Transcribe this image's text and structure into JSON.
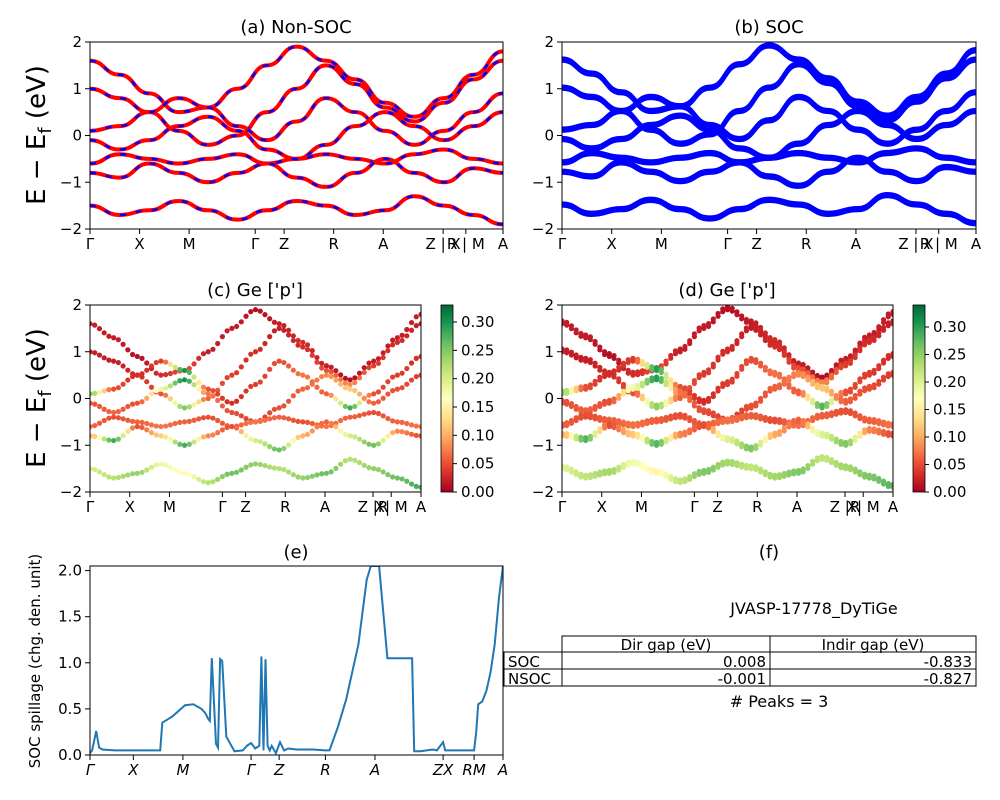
{
  "figure_label": "JVASP-17778_DyTiGe",
  "colorbar_ticks": [
    "0.00",
    "0.05",
    "0.10",
    "0.15",
    "0.20",
    "0.25",
    "0.30"
  ],
  "chart_data": [
    {
      "id": "a",
      "type": "line",
      "title": "(a) Non-SOC",
      "ylabel": "E − E_f (eV)",
      "ylim": [
        -2,
        2
      ],
      "yticks": [
        "−2",
        "−1",
        "0",
        "1",
        "2"
      ],
      "kpath": [
        "Γ",
        "X",
        "M",
        "Γ",
        "Z",
        "R",
        "A",
        "Z | X",
        "R | M",
        "A"
      ],
      "colors": [
        "#ff0000",
        "#0000ff"
      ],
      "series": [
        {
          "values": [
            1.6,
            1.3,
            0.9,
            0.5,
            0.6,
            1.0,
            1.5,
            1.9,
            1.6,
            1.2,
            0.7,
            0.4,
            0.8,
            1.3,
            1.8
          ]
        },
        {
          "values": [
            1.0,
            0.8,
            0.5,
            0.1,
            -0.2,
            0.0,
            0.5,
            1.0,
            1.5,
            1.1,
            0.6,
            0.3,
            0.7,
            1.2,
            1.6
          ]
        },
        {
          "values": [
            0.1,
            0.2,
            0.5,
            0.8,
            0.6,
            0.2,
            -0.1,
            0.3,
            0.8,
            0.5,
            0.1,
            -0.2,
            0.1,
            0.5,
            0.9
          ]
        },
        {
          "values": [
            -0.1,
            -0.3,
            -0.1,
            0.2,
            0.4,
            0.1,
            -0.3,
            -0.5,
            -0.2,
            0.2,
            0.5,
            0.2,
            -0.1,
            0.2,
            0.5
          ]
        },
        {
          "values": [
            -0.6,
            -0.4,
            -0.5,
            -0.6,
            -0.5,
            -0.4,
            -0.6,
            -0.5,
            -0.4,
            -0.5,
            -0.6,
            -0.4,
            -0.3,
            -0.5,
            -0.6
          ]
        },
        {
          "values": [
            -0.8,
            -0.9,
            -0.6,
            -0.8,
            -1.0,
            -0.8,
            -0.6,
            -0.9,
            -1.1,
            -0.8,
            -0.5,
            -0.8,
            -1.0,
            -0.7,
            -0.8
          ]
        },
        {
          "values": [
            -1.5,
            -1.7,
            -1.6,
            -1.4,
            -1.6,
            -1.8,
            -1.6,
            -1.4,
            -1.5,
            -1.7,
            -1.6,
            -1.3,
            -1.5,
            -1.7,
            -1.9
          ]
        }
      ]
    },
    {
      "id": "b",
      "type": "line",
      "title": "(b) SOC",
      "ylim": [
        -2,
        2
      ],
      "yticks": [
        "−2",
        "−1",
        "0",
        "1",
        "2"
      ],
      "kpath": [
        "Γ",
        "X",
        "M",
        "Γ",
        "Z",
        "R",
        "A",
        "Z | X",
        "R | M",
        "A"
      ],
      "colors": [
        "#0000ff"
      ],
      "series": [
        {
          "values": [
            1.6,
            1.3,
            0.9,
            0.5,
            0.6,
            1.0,
            1.5,
            1.9,
            1.6,
            1.2,
            0.7,
            0.4,
            0.8,
            1.3,
            1.8
          ]
        },
        {
          "values": [
            1.0,
            0.8,
            0.5,
            0.1,
            -0.2,
            0.0,
            0.5,
            1.0,
            1.5,
            1.1,
            0.6,
            0.3,
            0.7,
            1.2,
            1.6
          ]
        },
        {
          "values": [
            0.1,
            0.2,
            0.5,
            0.8,
            0.6,
            0.2,
            -0.1,
            0.3,
            0.8,
            0.5,
            0.1,
            -0.2,
            0.1,
            0.5,
            0.9
          ]
        },
        {
          "values": [
            -0.1,
            -0.3,
            -0.1,
            0.2,
            0.4,
            0.1,
            -0.3,
            -0.5,
            -0.2,
            0.2,
            0.5,
            0.2,
            -0.1,
            0.2,
            0.5
          ]
        },
        {
          "values": [
            -0.6,
            -0.4,
            -0.5,
            -0.6,
            -0.5,
            -0.4,
            -0.6,
            -0.5,
            -0.4,
            -0.5,
            -0.6,
            -0.4,
            -0.3,
            -0.5,
            -0.6
          ]
        },
        {
          "values": [
            -0.8,
            -0.9,
            -0.6,
            -0.8,
            -1.0,
            -0.8,
            -0.6,
            -0.9,
            -1.1,
            -0.8,
            -0.5,
            -0.8,
            -1.0,
            -0.7,
            -0.8
          ]
        },
        {
          "values": [
            -1.5,
            -1.7,
            -1.6,
            -1.4,
            -1.6,
            -1.8,
            -1.6,
            -1.4,
            -1.5,
            -1.7,
            -1.6,
            -1.3,
            -1.5,
            -1.7,
            -1.9
          ]
        }
      ]
    },
    {
      "id": "c",
      "type": "scatter",
      "title": "(c)  Ge ['p']",
      "ylabel": "E − E_f (eV)",
      "ylim": [
        -2,
        2
      ],
      "yticks": [
        "−2",
        "−1",
        "0",
        "1",
        "2"
      ],
      "kpath": [
        "Γ",
        "X",
        "M",
        "Γ",
        "Z",
        "R",
        "A",
        "Z |R",
        "X| M",
        "A"
      ],
      "colorbar_range": [
        0,
        0.33
      ],
      "series": [
        {
          "values": [
            1.6,
            1.3,
            0.9,
            0.5,
            0.6,
            1.0,
            1.5,
            1.9,
            1.6,
            1.2,
            0.7,
            0.4,
            0.8,
            1.3,
            1.8
          ],
          "weights": [
            0.02,
            0.02,
            0.01,
            0.03,
            0.05,
            0.02,
            0.02,
            0.01,
            0.02,
            0.03,
            0.02,
            0.01,
            0.02,
            0.02,
            0.02
          ]
        },
        {
          "values": [
            1.0,
            0.8,
            0.5,
            0.1,
            -0.2,
            0.0,
            0.5,
            1.0,
            1.5,
            1.1,
            0.6,
            0.3,
            0.7,
            1.2,
            1.6
          ],
          "weights": [
            0.02,
            0.02,
            0.03,
            0.05,
            0.25,
            0.06,
            0.04,
            0.03,
            0.02,
            0.03,
            0.05,
            0.08,
            0.04,
            0.03,
            0.02
          ]
        },
        {
          "values": [
            0.1,
            0.2,
            0.5,
            0.8,
            0.6,
            0.2,
            -0.1,
            0.3,
            0.8,
            0.5,
            0.1,
            -0.2,
            0.1,
            0.5,
            0.9
          ],
          "weights": [
            0.25,
            0.05,
            0.03,
            0.04,
            0.3,
            0.05,
            0.03,
            0.04,
            0.05,
            0.07,
            0.06,
            0.28,
            0.05,
            0.04,
            0.03
          ]
        },
        {
          "values": [
            -0.1,
            -0.3,
            -0.1,
            0.2,
            0.4,
            0.1,
            -0.3,
            -0.5,
            -0.2,
            0.2,
            0.5,
            0.2,
            -0.1,
            0.2,
            0.5
          ],
          "weights": [
            0.05,
            0.06,
            0.05,
            0.18,
            0.3,
            0.07,
            0.05,
            0.04,
            0.05,
            0.06,
            0.08,
            0.12,
            0.06,
            0.05,
            0.04
          ]
        },
        {
          "values": [
            -0.6,
            -0.4,
            -0.5,
            -0.6,
            -0.5,
            -0.4,
            -0.6,
            -0.5,
            -0.4,
            -0.5,
            -0.6,
            -0.4,
            -0.3,
            -0.5,
            -0.6
          ],
          "weights": [
            0.06,
            0.05,
            0.06,
            0.07,
            0.06,
            0.05,
            0.06,
            0.07,
            0.06,
            0.05,
            0.07,
            0.06,
            0.05,
            0.06,
            0.07
          ]
        },
        {
          "values": [
            -0.8,
            -0.9,
            -0.6,
            -0.8,
            -1.0,
            -0.8,
            -0.6,
            -0.9,
            -1.1,
            -0.8,
            -0.5,
            -0.8,
            -1.0,
            -0.7,
            -0.8
          ],
          "weights": [
            0.1,
            0.28,
            0.05,
            0.12,
            0.28,
            0.08,
            0.05,
            0.2,
            0.26,
            0.1,
            0.06,
            0.2,
            0.26,
            0.08,
            0.05
          ]
        },
        {
          "values": [
            -1.5,
            -1.7,
            -1.6,
            -1.4,
            -1.6,
            -1.8,
            -1.6,
            -1.4,
            -1.5,
            -1.7,
            -1.6,
            -1.3,
            -1.5,
            -1.7,
            -1.9
          ],
          "weights": [
            0.2,
            0.22,
            0.24,
            0.18,
            0.16,
            0.22,
            0.26,
            0.24,
            0.22,
            0.24,
            0.26,
            0.22,
            0.24,
            0.26,
            0.28
          ]
        }
      ]
    },
    {
      "id": "d",
      "type": "scatter",
      "title": "(d) Ge ['p']",
      "ylim": [
        -2,
        2
      ],
      "yticks": [
        "−2",
        "−1",
        "0",
        "1",
        "2"
      ],
      "kpath": [
        "Γ",
        "X",
        "M",
        "Γ",
        "Z",
        "R",
        "A",
        "Z |R",
        "X| M",
        "A"
      ],
      "colorbar_range": [
        0,
        0.34
      ],
      "series": [
        {
          "values": [
            1.6,
            1.3,
            0.9,
            0.5,
            0.6,
            1.0,
            1.5,
            1.9,
            1.6,
            1.2,
            0.7,
            0.4,
            0.8,
            1.3,
            1.8
          ],
          "weights": [
            0.02,
            0.02,
            0.01,
            0.03,
            0.05,
            0.02,
            0.02,
            0.01,
            0.02,
            0.03,
            0.02,
            0.01,
            0.02,
            0.02,
            0.02
          ]
        },
        {
          "values": [
            1.0,
            0.8,
            0.5,
            0.1,
            -0.2,
            0.0,
            0.5,
            1.0,
            1.5,
            1.1,
            0.6,
            0.3,
            0.7,
            1.2,
            1.6
          ],
          "weights": [
            0.02,
            0.02,
            0.03,
            0.05,
            0.25,
            0.06,
            0.04,
            0.03,
            0.02,
            0.03,
            0.05,
            0.08,
            0.04,
            0.03,
            0.02
          ]
        },
        {
          "values": [
            0.1,
            0.2,
            0.5,
            0.8,
            0.6,
            0.2,
            -0.1,
            0.3,
            0.8,
            0.5,
            0.1,
            -0.2,
            0.1,
            0.5,
            0.9
          ],
          "weights": [
            0.25,
            0.05,
            0.03,
            0.04,
            0.3,
            0.05,
            0.03,
            0.04,
            0.05,
            0.07,
            0.06,
            0.28,
            0.05,
            0.04,
            0.03
          ]
        },
        {
          "values": [
            -0.1,
            -0.3,
            -0.1,
            0.2,
            0.4,
            0.1,
            -0.3,
            -0.5,
            -0.2,
            0.2,
            0.5,
            0.2,
            -0.1,
            0.2,
            0.5
          ],
          "weights": [
            0.05,
            0.06,
            0.05,
            0.18,
            0.3,
            0.07,
            0.05,
            0.04,
            0.05,
            0.06,
            0.08,
            0.12,
            0.06,
            0.05,
            0.04
          ]
        },
        {
          "values": [
            -0.6,
            -0.4,
            -0.5,
            -0.6,
            -0.5,
            -0.4,
            -0.6,
            -0.5,
            -0.4,
            -0.5,
            -0.6,
            -0.4,
            -0.3,
            -0.5,
            -0.6
          ],
          "weights": [
            0.06,
            0.05,
            0.06,
            0.07,
            0.06,
            0.05,
            0.06,
            0.07,
            0.06,
            0.05,
            0.07,
            0.06,
            0.05,
            0.06,
            0.07
          ]
        },
        {
          "values": [
            -0.8,
            -0.9,
            -0.6,
            -0.8,
            -1.0,
            -0.8,
            -0.6,
            -0.9,
            -1.1,
            -0.8,
            -0.5,
            -0.8,
            -1.0,
            -0.7,
            -0.8
          ],
          "weights": [
            0.1,
            0.28,
            0.05,
            0.12,
            0.28,
            0.08,
            0.05,
            0.2,
            0.26,
            0.1,
            0.06,
            0.2,
            0.26,
            0.08,
            0.05
          ]
        },
        {
          "values": [
            -1.5,
            -1.7,
            -1.6,
            -1.4,
            -1.6,
            -1.8,
            -1.6,
            -1.4,
            -1.5,
            -1.7,
            -1.6,
            -1.3,
            -1.5,
            -1.7,
            -1.9
          ],
          "weights": [
            0.2,
            0.22,
            0.24,
            0.18,
            0.16,
            0.22,
            0.26,
            0.24,
            0.22,
            0.24,
            0.26,
            0.22,
            0.24,
            0.26,
            0.28
          ]
        }
      ]
    },
    {
      "id": "e",
      "type": "line",
      "title": "(e)",
      "ylabel": "SOC spillage (chg. den. unit)",
      "ylim": [
        0,
        2.05
      ],
      "yticks": [
        "0.0",
        "0.5",
        "1.0",
        "1.5",
        "2.0"
      ],
      "xlim": [
        0,
        1
      ],
      "xticks": [
        "Γ",
        "X",
        "M",
        "Γ",
        "Z",
        "R",
        "A",
        "ZX",
        "RM",
        "A"
      ],
      "color": "#1f77b4",
      "x": [
        0.0,
        0.005,
        0.015,
        0.022,
        0.03,
        0.06,
        0.1,
        0.17,
        0.175,
        0.2,
        0.23,
        0.25,
        0.27,
        0.28,
        0.285,
        0.29,
        0.295,
        0.305,
        0.31,
        0.315,
        0.32,
        0.33,
        0.35,
        0.37,
        0.38,
        0.39,
        0.4,
        0.41,
        0.415,
        0.42,
        0.425,
        0.43,
        0.435,
        0.44,
        0.45,
        0.46,
        0.47,
        0.48,
        0.5,
        0.54,
        0.57,
        0.58,
        0.6,
        0.62,
        0.65,
        0.67,
        0.68,
        0.69,
        0.7,
        0.72,
        0.78,
        0.785,
        0.8,
        0.83,
        0.84,
        0.855,
        0.86,
        0.87,
        0.89,
        0.93,
        0.935,
        0.94,
        0.95,
        0.96,
        0.97,
        0.98,
        0.99,
        1.0
      ],
      "values": [
        0.02,
        0.05,
        0.26,
        0.08,
        0.06,
        0.05,
        0.05,
        0.05,
        0.35,
        0.42,
        0.54,
        0.55,
        0.5,
        0.45,
        0.4,
        0.37,
        1.05,
        0.12,
        0.08,
        1.04,
        1.02,
        0.2,
        0.04,
        0.05,
        0.1,
        0.13,
        0.07,
        0.1,
        1.07,
        0.05,
        1.04,
        0.1,
        0.05,
        0.1,
        0.02,
        0.14,
        0.05,
        0.07,
        0.06,
        0.06,
        0.05,
        0.05,
        0.3,
        0.6,
        1.2,
        1.9,
        2.05,
        2.05,
        2.05,
        1.05,
        1.05,
        0.04,
        0.04,
        0.06,
        0.05,
        0.14,
        0.05,
        0.05,
        0.05,
        0.05,
        0.25,
        0.55,
        0.58,
        0.7,
        0.9,
        1.2,
        1.7,
        2.05
      ]
    },
    {
      "id": "f",
      "type": "table",
      "title": "(f)",
      "subtitle": "JVASP-17778_DyTiGe",
      "columns": [
        "",
        "Dir gap (eV)",
        "Indir gap (eV)"
      ],
      "rows": [
        [
          "SOC",
          "0.008",
          "-0.833"
        ],
        [
          "NSOC",
          "-0.001",
          "-0.827"
        ]
      ],
      "footer": "# Peaks = 3"
    }
  ]
}
